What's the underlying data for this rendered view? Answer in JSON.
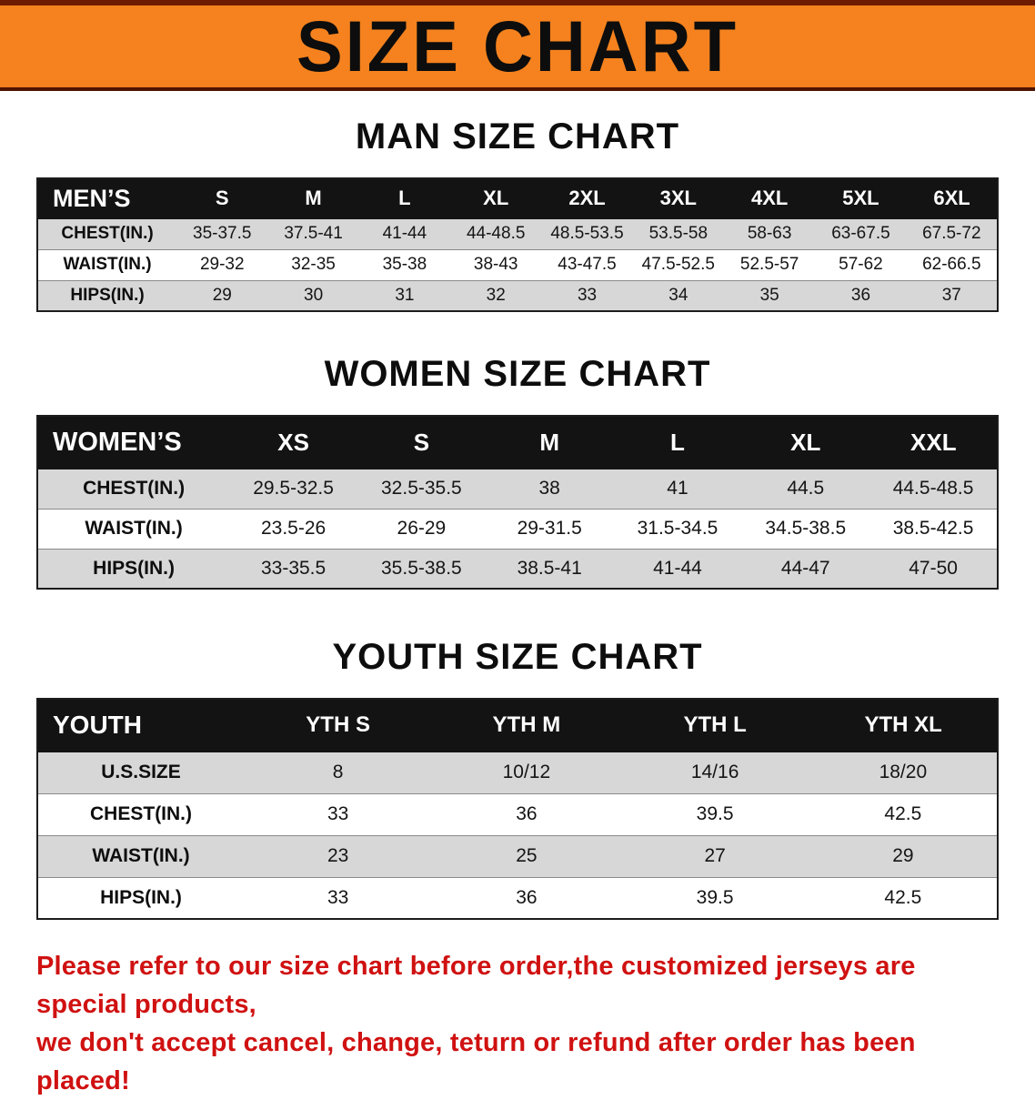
{
  "banner": {
    "title": "SIZE CHART",
    "bg_color": "#F5821E",
    "stripe_color": "#6E1B02"
  },
  "sections": [
    {
      "id": "men",
      "heading": "MAN SIZE CHART",
      "table": {
        "header": [
          "MEN’S",
          "S",
          "M",
          "L",
          "XL",
          "2XL",
          "3XL",
          "4XL",
          "5XL",
          "6XL"
        ],
        "rows": [
          [
            "CHEST(IN.)",
            "35-37.5",
            "37.5-41",
            "41-44",
            "44-48.5",
            "48.5-53.5",
            "53.5-58",
            "58-63",
            "63-67.5",
            "67.5-72"
          ],
          [
            "WAIST(IN.)",
            "29-32",
            "32-35",
            "35-38",
            "38-43",
            "43-47.5",
            "47.5-52.5",
            "52.5-57",
            "57-62",
            "62-66.5"
          ],
          [
            "HIPS(IN.)",
            "29",
            "30",
            "31",
            "32",
            "33",
            "34",
            "35",
            "36",
            "37"
          ]
        ]
      }
    },
    {
      "id": "women",
      "heading": "WOMEN SIZE CHART",
      "table": {
        "header": [
          "WOMEN’S",
          "XS",
          "S",
          "M",
          "L",
          "XL",
          "XXL"
        ],
        "rows": [
          [
            "CHEST(IN.)",
            "29.5-32.5",
            "32.5-35.5",
            "38",
            "41",
            "44.5",
            "44.5-48.5"
          ],
          [
            "WAIST(IN.)",
            "23.5-26",
            "26-29",
            "29-31.5",
            "31.5-34.5",
            "34.5-38.5",
            "38.5-42.5"
          ],
          [
            "HIPS(IN.)",
            "33-35.5",
            "35.5-38.5",
            "38.5-41",
            "41-44",
            "44-47",
            "47-50"
          ]
        ]
      }
    },
    {
      "id": "youth",
      "heading": "YOUTH SIZE CHART",
      "table": {
        "header": [
          "YOUTH",
          "YTH S",
          "YTH M",
          "YTH L",
          "YTH XL"
        ],
        "rows": [
          [
            "U.S.SIZE",
            "8",
            "10/12",
            "14/16",
            "18/20"
          ],
          [
            "CHEST(IN.)",
            "33",
            "36",
            "39.5",
            "42.5"
          ],
          [
            "WAIST(IN.)",
            "23",
            "25",
            "27",
            "29"
          ],
          [
            "HIPS(IN.)",
            "33",
            "36",
            "39.5",
            "42.5"
          ]
        ]
      }
    }
  ],
  "disclaimer": {
    "color": "#D01111",
    "lines": [
      "Please refer to our size chart before order,the customized jerseys are special products,",
      "we don't accept cancel, change, teturn or refund after order has been placed!"
    ]
  }
}
